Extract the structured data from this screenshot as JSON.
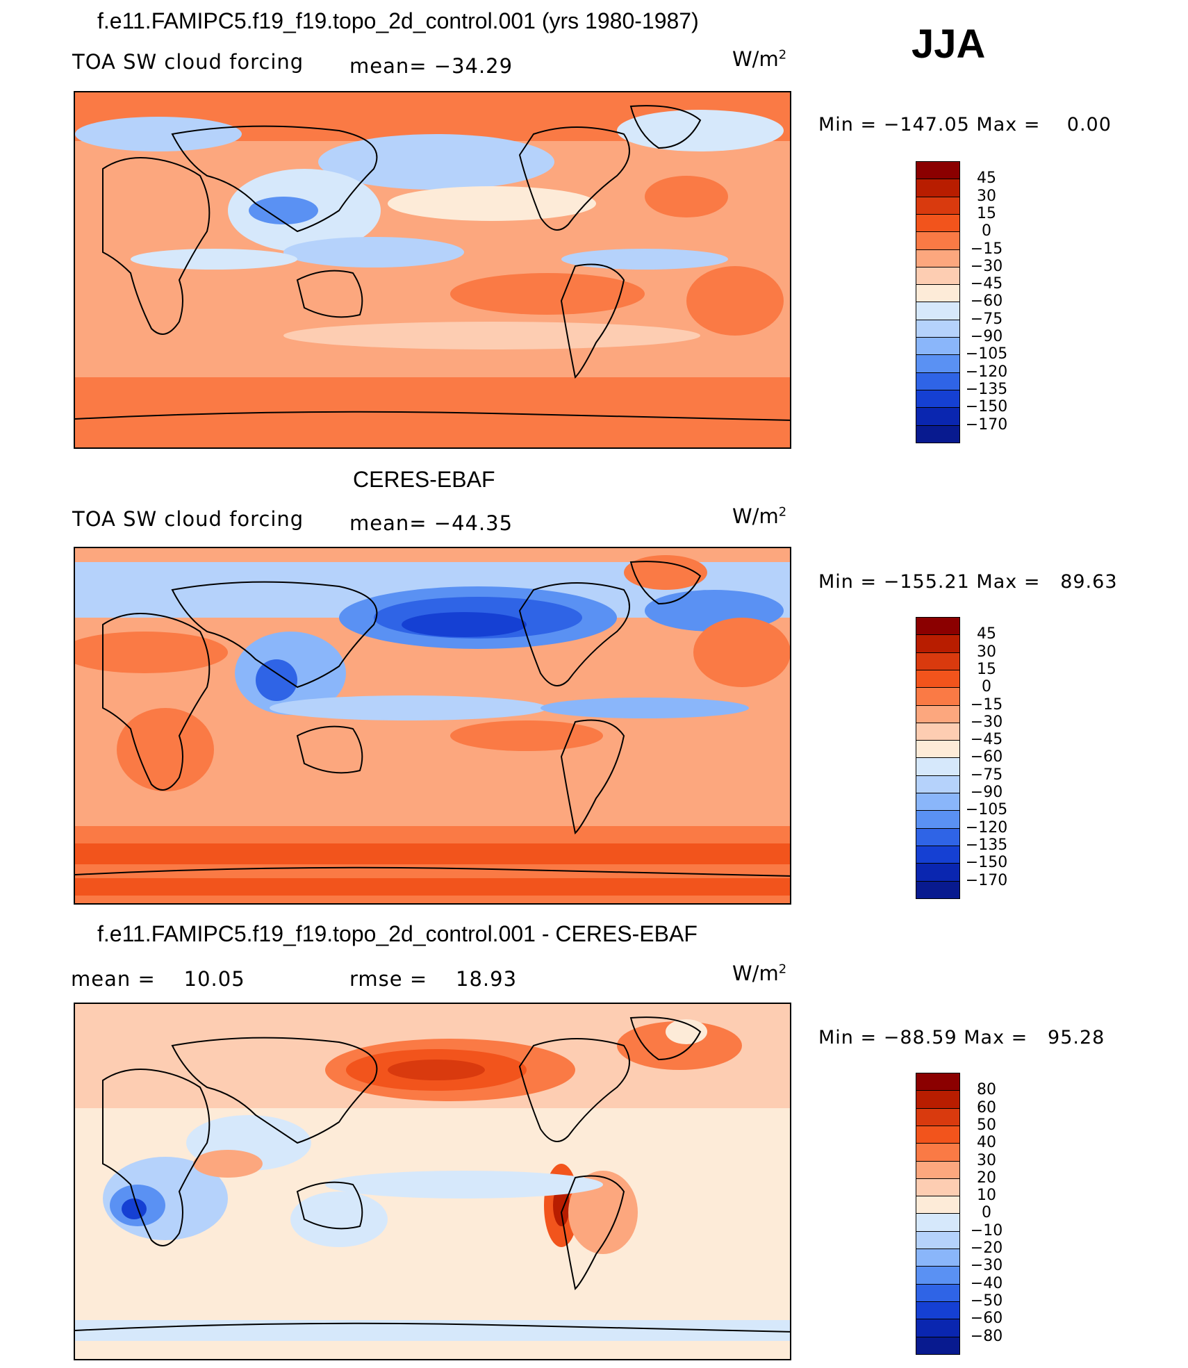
{
  "season": "JJA",
  "panels": [
    {
      "title": "f.e11.FAMIPC5.f19_f19.topo_2d_control.001 (yrs 1980-1987)",
      "variable": "TOA SW cloud forcing",
      "stat1_label": "mean=",
      "stat1_value": "−34.29",
      "stat2_label": "",
      "stat2_value": "",
      "units": "W/m",
      "units_sup": "2",
      "min_label": "Min",
      "min_value": "−147.05",
      "max_label": "Max",
      "max_value": "0.00",
      "colorbar_labels": [
        "45",
        "30",
        "15",
        "0",
        "−15",
        "−30",
        "−45",
        "−60",
        "−75",
        "−90",
        "−105",
        "−120",
        "−135",
        "−150",
        "−170"
      ],
      "colors": [
        "#8b0000",
        "#b81d00",
        "#d93a0e",
        "#f2541c",
        "#fa7a45",
        "#fca77e",
        "#fdcdb2",
        "#fdebd8",
        "#d6e8fb",
        "#b5d2fb",
        "#8ab6fa",
        "#5a91f3",
        "#2f64e6",
        "#1540d3",
        "#0a26b0",
        "#081a8f"
      ]
    },
    {
      "title": "CERES-EBAF",
      "variable": "TOA SW cloud forcing",
      "stat1_label": "mean=",
      "stat1_value": "−44.35",
      "stat2_label": "",
      "stat2_value": "",
      "units": "W/m",
      "units_sup": "2",
      "min_label": "Min",
      "min_value": "−155.21",
      "max_label": "Max",
      "max_value": "89.63",
      "colorbar_labels": [
        "45",
        "30",
        "15",
        "0",
        "−15",
        "−30",
        "−45",
        "−60",
        "−75",
        "−90",
        "−105",
        "−120",
        "−135",
        "−150",
        "−170"
      ],
      "colors": [
        "#8b0000",
        "#b81d00",
        "#d93a0e",
        "#f2541c",
        "#fa7a45",
        "#fca77e",
        "#fdcdb2",
        "#fdebd8",
        "#d6e8fb",
        "#b5d2fb",
        "#8ab6fa",
        "#5a91f3",
        "#2f64e6",
        "#1540d3",
        "#0a26b0",
        "#081a8f"
      ]
    },
    {
      "title": "f.e11.FAMIPC5.f19_f19.topo_2d_control.001 - CERES-EBAF",
      "variable": "",
      "stat1_label": "mean =",
      "stat1_value": "10.05",
      "stat2_label": "rmse =",
      "stat2_value": "18.93",
      "units": "W/m",
      "units_sup": "2",
      "min_label": "Min",
      "min_value": "−88.59",
      "max_label": "Max",
      "max_value": "95.28",
      "colorbar_labels": [
        "80",
        "60",
        "50",
        "40",
        "30",
        "20",
        "10",
        "0",
        "−10",
        "−20",
        "−30",
        "−40",
        "−50",
        "−60",
        "−80"
      ],
      "colors": [
        "#8b0000",
        "#b81d00",
        "#d93a0e",
        "#f2541c",
        "#fa7a45",
        "#fca77e",
        "#fdcdb2",
        "#fdebd8",
        "#d6e8fb",
        "#b5d2fb",
        "#8ab6fa",
        "#5a91f3",
        "#2f64e6",
        "#1540d3",
        "#0a26b0",
        "#081a8f"
      ]
    }
  ]
}
